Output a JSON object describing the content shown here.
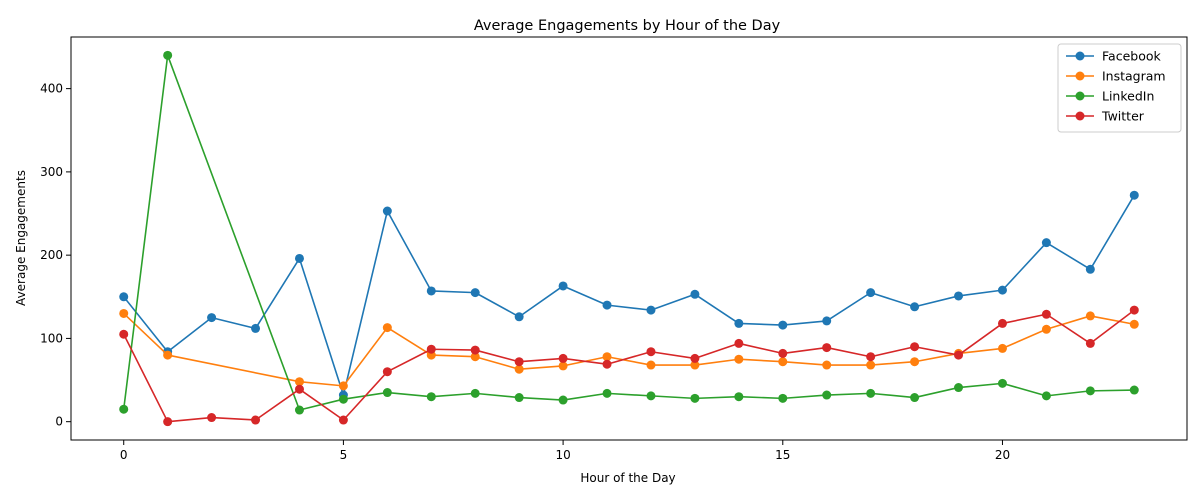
{
  "chart_data": {
    "type": "line",
    "title": "Average Engagements by Hour of the Day",
    "xlabel": "Hour of the Day",
    "ylabel": "Average Engagements",
    "xlim": [
      -1.2,
      24.2
    ],
    "ylim": [
      -22,
      462
    ],
    "xticks": [
      0,
      5,
      10,
      15,
      20
    ],
    "yticks": [
      0,
      100,
      200,
      300,
      400
    ],
    "grid": false,
    "legend_position": "top-right",
    "series": [
      {
        "name": "Facebook",
        "color": "#1f77b4",
        "x": [
          0,
          1,
          2,
          3,
          4,
          5,
          6,
          7,
          8,
          9,
          10,
          11,
          12,
          13,
          14,
          15,
          16,
          17,
          18,
          19,
          20,
          21,
          22,
          23
        ],
        "values": [
          150,
          84,
          125,
          112,
          196,
          32,
          253,
          157,
          155,
          126,
          163,
          140,
          134,
          153,
          118,
          116,
          121,
          155,
          138,
          151,
          158,
          215,
          183,
          272
        ]
      },
      {
        "name": "Instagram",
        "color": "#ff7f0e",
        "x": [
          0,
          1,
          4,
          5,
          6,
          7,
          8,
          9,
          10,
          11,
          12,
          13,
          14,
          15,
          16,
          17,
          18,
          19,
          20,
          21,
          22,
          23
        ],
        "values": [
          130,
          80,
          48,
          43,
          113,
          80,
          78,
          63,
          67,
          78,
          68,
          68,
          75,
          72,
          68,
          68,
          72,
          82,
          88,
          111,
          127,
          117
        ]
      },
      {
        "name": "LinkedIn",
        "color": "#2ca02c",
        "x": [
          0,
          1,
          4,
          5,
          6,
          7,
          8,
          9,
          10,
          11,
          12,
          13,
          14,
          15,
          16,
          17,
          18,
          19,
          20,
          21,
          22,
          23
        ],
        "values": [
          15,
          440,
          14,
          27,
          35,
          30,
          34,
          29,
          26,
          34,
          31,
          28,
          30,
          28,
          32,
          34,
          29,
          41,
          46,
          31,
          37,
          38
        ]
      },
      {
        "name": "Twitter",
        "color": "#d62728",
        "x": [
          0,
          1,
          2,
          3,
          4,
          5,
          6,
          7,
          8,
          9,
          10,
          11,
          12,
          13,
          14,
          15,
          16,
          17,
          18,
          19,
          20,
          21,
          22,
          23
        ],
        "values": [
          105,
          0,
          5,
          2,
          39,
          2,
          60,
          87,
          86,
          72,
          76,
          69,
          84,
          76,
          94,
          82,
          89,
          78,
          90,
          80,
          118,
          129,
          94,
          134
        ]
      }
    ]
  }
}
